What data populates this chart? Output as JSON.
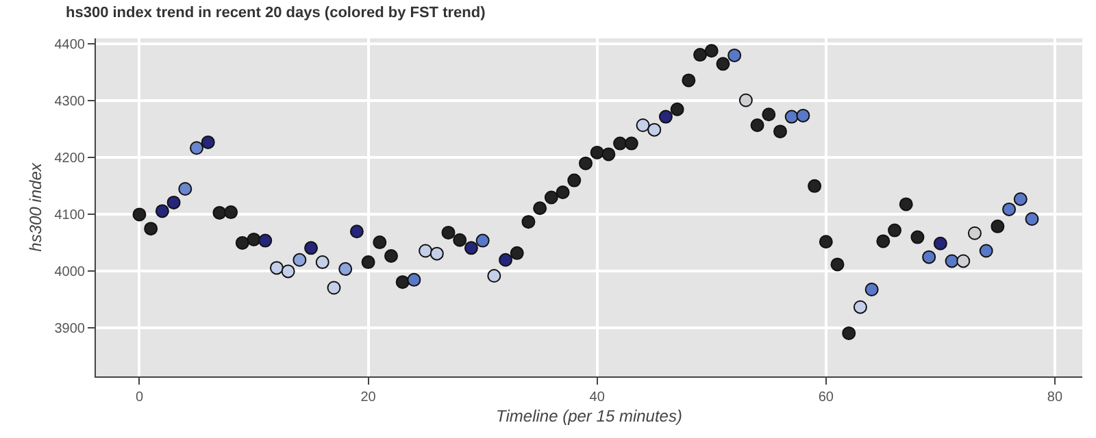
{
  "chart_data": {
    "type": "scatter",
    "title": "hs300 index trend in recent 20 days (colored by FST trend)",
    "xlabel": "Timeline (per 15 minutes)",
    "ylabel": "hs300 index",
    "x": [
      0,
      1,
      2,
      3,
      4,
      5,
      6,
      7,
      8,
      9,
      10,
      11,
      12,
      13,
      14,
      15,
      16,
      17,
      18,
      19,
      20,
      21,
      22,
      23,
      24,
      25,
      26,
      27,
      28,
      29,
      30,
      31,
      32,
      33,
      34,
      35,
      36,
      37,
      38,
      39,
      40,
      41,
      42,
      43,
      44,
      45,
      46,
      47,
      48,
      49,
      50,
      51,
      52,
      53,
      54,
      55,
      56,
      57,
      58,
      59,
      60,
      61,
      62,
      63,
      64,
      65,
      66,
      67,
      68,
      69,
      70,
      71,
      72,
      73,
      74,
      75,
      76,
      77,
      78
    ],
    "values": [
      4100,
      4075,
      4106,
      4121,
      4145,
      4217,
      4227,
      4103,
      4104,
      4050,
      4056,
      4054,
      4006,
      4000,
      4020,
      4041,
      4016,
      3971,
      4004,
      4070,
      4016,
      4051,
      4027,
      3981,
      3985,
      4036,
      4031,
      4068,
      4055,
      4041,
      4054,
      3992,
      4020,
      4032,
      4087,
      4111,
      4130,
      4139,
      4160,
      4190,
      4209,
      4206,
      4225,
      4225,
      4257,
      4249,
      4272,
      4285,
      4336,
      4381,
      4388,
      4365,
      4380,
      4301,
      4257,
      4276,
      4246,
      4272,
      4274,
      4150,
      4052,
      4012,
      3891,
      3937,
      3968,
      4053,
      4072,
      4118,
      4060,
      4025,
      4049,
      4018,
      4018,
      4067,
      4036,
      4079,
      4109,
      4127,
      4092
    ],
    "colors": [
      "#222222",
      "#222222",
      "#25257a",
      "#25257a",
      "#6a86cc",
      "#6a86cc",
      "#25257a",
      "#222222",
      "#222222",
      "#222222",
      "#222222",
      "#25257a",
      "#c4d0ea",
      "#c4d0ea",
      "#8ea4dc",
      "#25257a",
      "#c4d0ea",
      "#c4d0ea",
      "#8ea4dc",
      "#25257a",
      "#222222",
      "#222222",
      "#222222",
      "#222222",
      "#5a78c8",
      "#c4d0ea",
      "#c4d0ea",
      "#222222",
      "#222222",
      "#25257a",
      "#5a78c8",
      "#c4d0ea",
      "#25257a",
      "#222222",
      "#222222",
      "#222222",
      "#222222",
      "#222222",
      "#222222",
      "#222222",
      "#222222",
      "#222222",
      "#222222",
      "#222222",
      "#c4d0ea",
      "#c4d0ea",
      "#25257a",
      "#222222",
      "#222222",
      "#222222",
      "#222222",
      "#222222",
      "#5a78c8",
      "#d0d0d4",
      "#222222",
      "#222222",
      "#222222",
      "#5a78c8",
      "#5a78c8",
      "#222222",
      "#222222",
      "#222222",
      "#222222",
      "#c4d0ea",
      "#5a78c8",
      "#222222",
      "#222222",
      "#222222",
      "#222222",
      "#5a78c8",
      "#25257a",
      "#5a78c8",
      "#d0d0d4",
      "#d0d0d4",
      "#5a78c8",
      "#222222",
      "#5a78c8",
      "#5a78c8",
      "#5a78c8"
    ],
    "xlim": [
      -3.8,
      82.4
    ],
    "xticks": [
      0,
      20,
      40,
      60,
      80
    ],
    "ylim": [
      3815,
      4410
    ],
    "yticks": [
      3900,
      4000,
      4100,
      4200,
      4300,
      4400
    ],
    "grid": true,
    "marker": "circle"
  }
}
